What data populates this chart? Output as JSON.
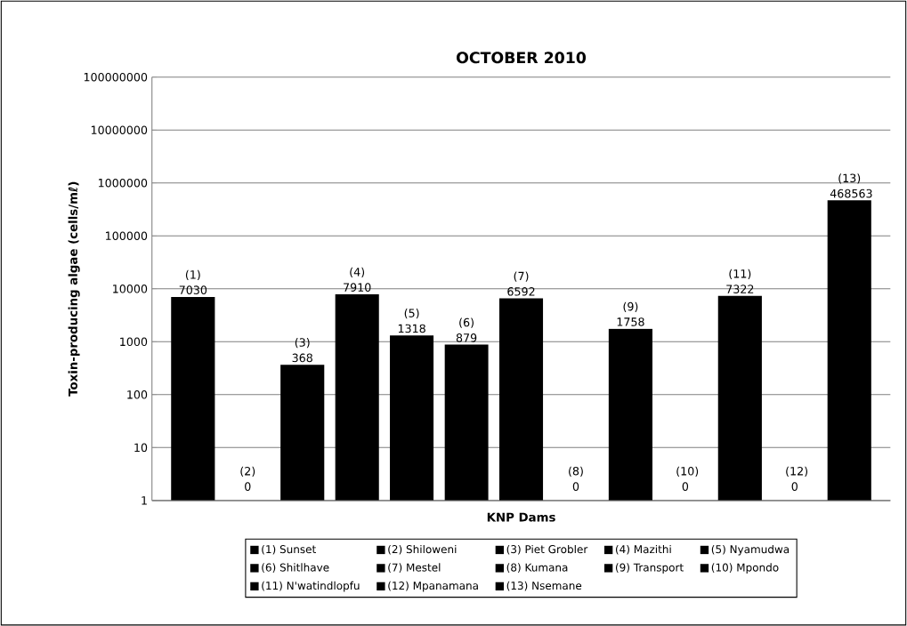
{
  "chart_data": {
    "type": "bar",
    "title": "OCTOBER 2010",
    "xlabel": "KNP Dams",
    "ylabel": "Toxin-producing algae (cells/mℓ)",
    "categories": [
      null,
      null,
      null,
      null,
      null,
      null,
      null,
      null,
      null,
      null,
      null,
      null,
      null
    ],
    "annotations": [
      {
        "text": "(2) 0"
      },
      {
        "text": "(8) 0"
      },
      {
        "text": "(10) 0"
      },
      {
        "text": "(12) 0"
      }
    ],
    "log": true,
    "grid": "y",
    "legend": "bottom",
    "tick_labels": "y",
    "ylim": [
      1,
      100000000
    ],
    "yticks": [
      1,
      10,
      100,
      1000,
      10000,
      100000,
      1000000,
      10000000,
      100000000
    ],
    "series": [
      {
        "name": "(1) Sunset",
        "color": "#000000",
        "values": [
          7030,
          null,
          null,
          null,
          null,
          null,
          null,
          null,
          null,
          null,
          null,
          null,
          null
        ],
        "value_labels": [
          "(1) 7030",
          null,
          null,
          null,
          null,
          null,
          null,
          null,
          null,
          null,
          null,
          null,
          null
        ]
      },
      {
        "name": "(2) Shiloweni",
        "color": "#000000",
        "values": [
          null,
          null,
          null,
          null,
          null,
          null,
          null,
          null,
          null,
          null,
          null,
          null,
          null
        ]
      },
      {
        "name": "(3) Piet Grobler",
        "color": "#000000",
        "values": [
          null,
          null,
          368,
          null,
          null,
          null,
          null,
          null,
          null,
          null,
          null,
          null,
          null
        ],
        "value_labels": [
          null,
          null,
          "(3) 368",
          null,
          null,
          null,
          null,
          null,
          null,
          null,
          null,
          null,
          null
        ]
      },
      {
        "name": "(4) Mazithi",
        "color": "#000000",
        "values": [
          null,
          null,
          null,
          7910,
          null,
          null,
          null,
          null,
          null,
          null,
          null,
          null,
          null
        ],
        "value_labels": [
          null,
          null,
          null,
          "(4) 7910",
          null,
          null,
          null,
          null,
          null,
          null,
          null,
          null,
          null
        ]
      },
      {
        "name": "(5) Nyamudwa",
        "color": "#000000",
        "values": [
          null,
          null,
          null,
          null,
          1318,
          null,
          null,
          null,
          null,
          null,
          null,
          null,
          null
        ],
        "value_labels": [
          null,
          null,
          null,
          null,
          "(5) 1318",
          null,
          null,
          null,
          null,
          null,
          null,
          null,
          null
        ]
      },
      {
        "name": "(6) Shitlhave",
        "color": "#000000",
        "values": [
          null,
          null,
          null,
          null,
          null,
          879,
          null,
          null,
          null,
          null,
          null,
          null,
          null
        ],
        "value_labels": [
          null,
          null,
          null,
          null,
          null,
          "(6) 879",
          null,
          null,
          null,
          null,
          null,
          null,
          null
        ]
      },
      {
        "name": "(7) Mestel",
        "color": "#000000",
        "values": [
          null,
          null,
          null,
          null,
          null,
          null,
          6592,
          null,
          null,
          null,
          null,
          null,
          null
        ],
        "value_labels": [
          null,
          null,
          null,
          null,
          null,
          null,
          "(7) 6592",
          null,
          null,
          null,
          null,
          null,
          null
        ]
      },
      {
        "name": "(8) Kumana",
        "color": "#000000",
        "values": [
          null,
          null,
          null,
          null,
          null,
          null,
          null,
          null,
          null,
          null,
          null,
          null,
          null
        ]
      },
      {
        "name": "(9) Transport",
        "color": "#000000",
        "values": [
          null,
          null,
          null,
          null,
          null,
          null,
          null,
          null,
          1758,
          null,
          null,
          null,
          null
        ],
        "value_labels": [
          null,
          null,
          null,
          null,
          null,
          null,
          null,
          null,
          "(9) 1758",
          null,
          null,
          null,
          null
        ]
      },
      {
        "name": "(10) Mpondo",
        "color": "#000000",
        "values": [
          null,
          null,
          null,
          null,
          null,
          null,
          null,
          null,
          null,
          null,
          null,
          null,
          null
        ]
      },
      {
        "name": "(11) N'watindlopfu",
        "color": "#000000",
        "values": [
          null,
          null,
          null,
          null,
          null,
          null,
          null,
          null,
          null,
          null,
          7322,
          null,
          null
        ],
        "value_labels": [
          null,
          null,
          null,
          null,
          null,
          null,
          null,
          null,
          null,
          null,
          "(11) 7322",
          null,
          null
        ]
      },
      {
        "name": "(12) Mpanamana",
        "color": "#000000",
        "values": [
          null,
          null,
          null,
          null,
          null,
          null,
          null,
          null,
          null,
          null,
          null,
          null,
          null
        ]
      },
      {
        "name": "(13) Nsemane",
        "color": "#000000",
        "values": [
          null,
          null,
          null,
          null,
          null,
          null,
          null,
          null,
          null,
          null,
          null,
          null,
          468563
        ],
        "value_labels": [
          null,
          null,
          null,
          null,
          null,
          null,
          null,
          null,
          null,
          null,
          null,
          null,
          "(13) 468563"
        ]
      }
    ]
  }
}
